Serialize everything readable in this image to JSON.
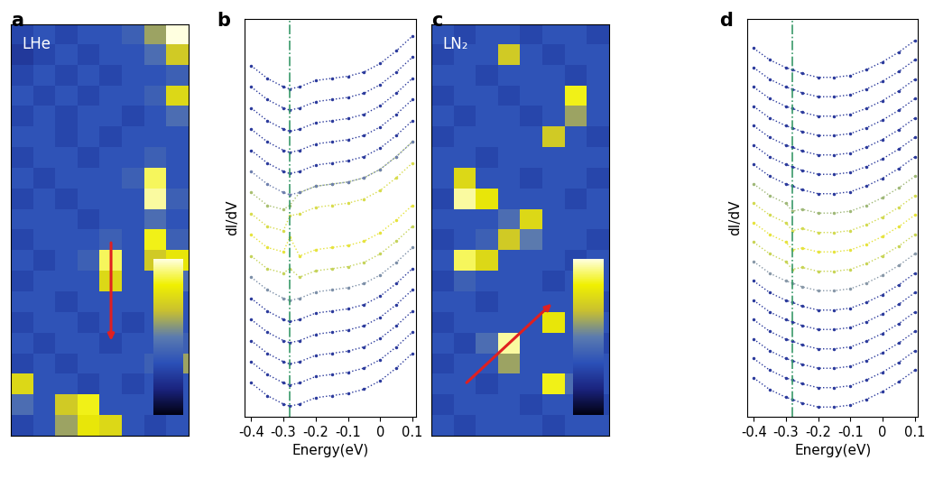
{
  "chart_data": [
    {
      "type": "heatmap",
      "label": "a",
      "annotation": "LHe",
      "tick_labels": false,
      "clim": [
        0,
        1
      ],
      "arrow": {
        "from": [
          4,
          10
        ],
        "to": [
          4,
          15
        ]
      },
      "cells": [
        [
          0.3,
          0.35,
          0.3,
          0.35,
          0.35,
          0.4,
          0.6,
          1.0
        ],
        [
          0.25,
          0.3,
          0.35,
          0.3,
          0.35,
          0.35,
          0.45,
          0.7
        ],
        [
          0.3,
          0.35,
          0.3,
          0.35,
          0.3,
          0.35,
          0.35,
          0.4
        ],
        [
          0.35,
          0.3,
          0.35,
          0.3,
          0.35,
          0.35,
          0.4,
          0.75
        ],
        [
          0.3,
          0.35,
          0.3,
          0.35,
          0.35,
          0.3,
          0.35,
          0.45
        ],
        [
          0.35,
          0.35,
          0.3,
          0.35,
          0.3,
          0.35,
          0.35,
          0.35
        ],
        [
          0.3,
          0.35,
          0.35,
          0.3,
          0.35,
          0.35,
          0.4,
          0.35
        ],
        [
          0.35,
          0.3,
          0.35,
          0.35,
          0.35,
          0.4,
          0.9,
          0.35
        ],
        [
          0.3,
          0.35,
          0.3,
          0.35,
          0.35,
          0.35,
          0.95,
          0.4
        ],
        [
          0.35,
          0.35,
          0.35,
          0.3,
          0.35,
          0.35,
          0.45,
          0.35
        ],
        [
          0.3,
          0.35,
          0.35,
          0.35,
          0.4,
          0.35,
          0.85,
          0.4
        ],
        [
          0.35,
          0.3,
          0.35,
          0.4,
          0.9,
          0.35,
          0.7,
          0.8
        ],
        [
          0.3,
          0.35,
          0.35,
          0.35,
          0.75,
          0.35,
          0.35,
          0.45
        ],
        [
          0.35,
          0.35,
          0.3,
          0.35,
          0.35,
          0.35,
          0.35,
          0.35
        ],
        [
          0.3,
          0.35,
          0.35,
          0.3,
          0.35,
          0.3,
          0.35,
          0.35
        ],
        [
          0.35,
          0.3,
          0.35,
          0.35,
          0.3,
          0.35,
          0.35,
          0.4
        ],
        [
          0.3,
          0.35,
          0.3,
          0.35,
          0.35,
          0.35,
          0.4,
          0.6
        ],
        [
          0.75,
          0.35,
          0.35,
          0.3,
          0.35,
          0.3,
          0.35,
          0.35
        ],
        [
          0.45,
          0.35,
          0.7,
          0.85,
          0.35,
          0.35,
          0.35,
          0.35
        ],
        [
          0.3,
          0.35,
          0.6,
          0.8,
          0.75,
          0.35,
          0.3,
          0.35
        ]
      ]
    },
    {
      "type": "line",
      "label": "b",
      "x_label": "Energy(eV)",
      "y_label": "dI/dV",
      "tick_labels": "x",
      "marker": ".",
      "line_style": "dotted",
      "xlim": [
        -0.42,
        0.11
      ],
      "xticks": [
        -0.4,
        -0.3,
        -0.2,
        -0.1,
        0,
        0.1
      ],
      "ylim": [
        1,
        19.8
      ],
      "yticks": [],
      "reference_line": {
        "x": -0.28,
        "color": "#3a9a6a",
        "line_style": "dashdot"
      },
      "x": [
        -0.4,
        -0.35,
        -0.3,
        -0.28,
        -0.25,
        -0.2,
        -0.15,
        -0.1,
        -0.05,
        0,
        0.05,
        0.1
      ],
      "series": [
        {
          "color": "#2b3a9c",
          "values": [
            2.6,
            2.0,
            1.6,
            1.5,
            1.6,
            1.9,
            2.0,
            2.1,
            2.3,
            2.7,
            3.3,
            4.0
          ]
        },
        {
          "color": "#2b3a9c",
          "values": [
            3.6,
            3.0,
            2.6,
            2.5,
            2.6,
            2.9,
            3.0,
            3.1,
            3.3,
            3.7,
            4.3,
            5.0
          ]
        },
        {
          "color": "#2b3a9c",
          "values": [
            4.6,
            4.0,
            3.6,
            3.5,
            3.6,
            3.9,
            4.0,
            4.1,
            4.3,
            4.7,
            5.3,
            6.0
          ]
        },
        {
          "color": "#2b3a9c",
          "values": [
            5.6,
            5.0,
            4.6,
            4.5,
            4.6,
            4.9,
            5.0,
            5.1,
            5.3,
            5.7,
            6.3,
            7.0
          ]
        },
        {
          "color": "#2b3a9c",
          "values": [
            6.6,
            6.0,
            5.6,
            5.5,
            5.6,
            5.9,
            6.0,
            6.1,
            6.3,
            6.7,
            7.3,
            8.0
          ]
        },
        {
          "color": "#7c8fa8",
          "values": [
            7.6,
            7.0,
            6.6,
            6.5,
            6.6,
            6.9,
            7.0,
            7.1,
            7.3,
            7.7,
            8.3,
            9.0
          ]
        },
        {
          "color": "#c5d35a",
          "values": [
            8.6,
            8.0,
            7.8,
            8.0,
            7.6,
            7.9,
            8.0,
            8.1,
            8.3,
            8.7,
            9.3,
            10.0
          ]
        },
        {
          "color": "#e6e33c",
          "values": [
            9.6,
            9.0,
            8.8,
            9.5,
            8.6,
            8.9,
            9.0,
            9.1,
            9.3,
            9.7,
            10.3,
            11.0
          ]
        },
        {
          "color": "#d8dc4c",
          "values": [
            10.6,
            10.0,
            9.8,
            10.5,
            10.6,
            10.9,
            11.0,
            11.1,
            11.3,
            11.7,
            12.3,
            13.0
          ]
        },
        {
          "color": "#a9c070",
          "values": [
            11.6,
            11.0,
            10.8,
            11.0,
            11.6,
            11.9,
            12.0,
            12.1,
            12.3,
            12.7,
            13.3,
            14.0
          ]
        },
        {
          "color": "#6e7fae",
          "values": [
            12.6,
            12.0,
            11.6,
            11.5,
            11.6,
            11.9,
            12.0,
            12.1,
            12.3,
            12.7,
            13.3,
            14.0
          ]
        },
        {
          "color": "#2b3a9c",
          "values": [
            13.6,
            13.0,
            12.6,
            12.5,
            12.6,
            12.9,
            13.0,
            13.1,
            13.3,
            13.7,
            14.3,
            15.0
          ]
        },
        {
          "color": "#2b3a9c",
          "values": [
            14.6,
            14.0,
            13.6,
            13.5,
            13.6,
            13.9,
            14.0,
            14.1,
            14.3,
            14.7,
            15.3,
            16.0
          ]
        },
        {
          "color": "#2b3a9c",
          "values": [
            15.6,
            15.0,
            14.6,
            14.5,
            14.6,
            14.9,
            15.0,
            15.1,
            15.3,
            15.7,
            16.3,
            17.0
          ]
        },
        {
          "color": "#2b3a9c",
          "values": [
            16.6,
            16.0,
            15.6,
            15.5,
            15.6,
            15.9,
            16.0,
            16.1,
            16.3,
            16.7,
            17.3,
            18.0
          ]
        },
        {
          "color": "#2b3a9c",
          "values": [
            17.6,
            17.0,
            16.6,
            16.5,
            16.6,
            16.9,
            17.0,
            17.1,
            17.3,
            17.7,
            18.3,
            19.0
          ]
        }
      ]
    },
    {
      "type": "heatmap",
      "label": "c",
      "annotation": "LN₂",
      "tick_labels": false,
      "clim": [
        0,
        1
      ],
      "arrow": {
        "from": [
          1,
          17
        ],
        "to": [
          5,
          13
        ]
      },
      "cells": [
        [
          0.35,
          0.3,
          0.35,
          0.35,
          0.3,
          0.35,
          0.35,
          0.3
        ],
        [
          0.3,
          0.35,
          0.35,
          0.7,
          0.35,
          0.3,
          0.35,
          0.35
        ],
        [
          0.35,
          0.35,
          0.3,
          0.35,
          0.35,
          0.35,
          0.3,
          0.35
        ],
        [
          0.3,
          0.35,
          0.35,
          0.3,
          0.35,
          0.35,
          0.85,
          0.35
        ],
        [
          0.35,
          0.3,
          0.35,
          0.35,
          0.3,
          0.35,
          0.6,
          0.35
        ],
        [
          0.3,
          0.35,
          0.35,
          0.35,
          0.35,
          0.7,
          0.35,
          0.3
        ],
        [
          0.35,
          0.35,
          0.3,
          0.35,
          0.35,
          0.35,
          0.35,
          0.35
        ],
        [
          0.35,
          0.75,
          0.35,
          0.35,
          0.3,
          0.35,
          0.35,
          0.3
        ],
        [
          0.3,
          0.95,
          0.8,
          0.35,
          0.35,
          0.35,
          0.3,
          0.35
        ],
        [
          0.35,
          0.35,
          0.35,
          0.45,
          0.75,
          0.35,
          0.35,
          0.35
        ],
        [
          0.3,
          0.35,
          0.4,
          0.7,
          0.5,
          0.35,
          0.35,
          0.3
        ],
        [
          0.35,
          0.9,
          0.75,
          0.35,
          0.35,
          0.35,
          0.3,
          0.35
        ],
        [
          0.3,
          0.4,
          0.35,
          0.35,
          0.35,
          0.3,
          0.35,
          0.35
        ],
        [
          0.35,
          0.35,
          0.3,
          0.35,
          0.35,
          0.35,
          0.35,
          0.3
        ],
        [
          0.3,
          0.35,
          0.35,
          0.35,
          0.35,
          0.8,
          0.35,
          0.35
        ],
        [
          0.35,
          0.3,
          0.45,
          0.95,
          0.35,
          0.35,
          0.35,
          0.3
        ],
        [
          0.3,
          0.35,
          0.35,
          0.6,
          0.35,
          0.35,
          0.35,
          0.35
        ],
        [
          0.35,
          0.35,
          0.3,
          0.35,
          0.35,
          0.85,
          0.45,
          0.35
        ],
        [
          0.3,
          0.35,
          0.35,
          0.35,
          0.3,
          0.35,
          0.35,
          0.3
        ],
        [
          0.35,
          0.3,
          0.35,
          0.35,
          0.35,
          0.3,
          0.35,
          0.35
        ]
      ]
    },
    {
      "type": "line",
      "label": "d",
      "x_label": "Energy(eV)",
      "y_label": "dI/dV",
      "tick_labels": "x",
      "marker": ".",
      "line_style": "dotted",
      "xlim": [
        -0.42,
        0.11
      ],
      "xticks": [
        -0.4,
        -0.3,
        -0.2,
        -0.1,
        0,
        0.1
      ],
      "ylim": [
        1,
        21.5
      ],
      "yticks": [],
      "reference_line": {
        "x": -0.28,
        "color": "#3a9a6a",
        "line_style": "dashdot"
      },
      "x": [
        -0.4,
        -0.35,
        -0.3,
        -0.28,
        -0.25,
        -0.2,
        -0.15,
        -0.1,
        -0.05,
        0,
        0.05,
        0.1
      ],
      "series": [
        {
          "color": "#2b3a9c",
          "values": [
            3.0,
            2.4,
            2.0,
            1.9,
            1.7,
            1.5,
            1.5,
            1.6,
            1.9,
            2.3,
            2.8,
            3.4
          ]
        },
        {
          "color": "#2b3a9c",
          "values": [
            4.0,
            3.4,
            3.0,
            2.9,
            2.7,
            2.5,
            2.5,
            2.6,
            2.9,
            3.3,
            3.8,
            4.4
          ]
        },
        {
          "color": "#2b3a9c",
          "values": [
            5.0,
            4.4,
            4.0,
            3.9,
            3.7,
            3.5,
            3.5,
            3.6,
            3.9,
            4.3,
            4.8,
            5.4
          ]
        },
        {
          "color": "#2b3a9c",
          "values": [
            6.0,
            5.4,
            5.0,
            4.9,
            4.7,
            4.5,
            4.5,
            4.6,
            4.9,
            5.3,
            5.8,
            6.4
          ]
        },
        {
          "color": "#2b3a9c",
          "values": [
            7.0,
            6.4,
            6.0,
            5.9,
            5.7,
            5.5,
            5.5,
            5.6,
            5.9,
            6.3,
            6.8,
            7.4
          ]
        },
        {
          "color": "#2b3a9c",
          "values": [
            8.0,
            7.4,
            7.0,
            6.9,
            6.7,
            6.5,
            6.5,
            6.6,
            6.9,
            7.3,
            7.8,
            8.4
          ]
        },
        {
          "color": "#8898a8",
          "values": [
            9.0,
            8.4,
            8.0,
            7.9,
            7.7,
            7.5,
            7.5,
            7.6,
            7.9,
            8.3,
            8.8,
            9.4
          ]
        },
        {
          "color": "#c8d455",
          "values": [
            10.0,
            9.4,
            9.0,
            8.6,
            8.7,
            8.5,
            8.5,
            8.6,
            8.9,
            9.3,
            9.8,
            10.4
          ]
        },
        {
          "color": "#e6e33c",
          "values": [
            11.0,
            10.4,
            10.0,
            9.6,
            9.7,
            9.5,
            9.5,
            9.6,
            9.9,
            10.3,
            10.8,
            11.4
          ]
        },
        {
          "color": "#d2da50",
          "values": [
            12.0,
            11.4,
            11.0,
            10.6,
            10.7,
            10.5,
            10.5,
            10.6,
            10.9,
            11.3,
            11.8,
            12.4
          ]
        },
        {
          "color": "#9fb878",
          "values": [
            13.0,
            12.4,
            12.0,
            11.6,
            11.7,
            11.5,
            11.5,
            11.6,
            11.9,
            12.3,
            12.8,
            13.4
          ]
        },
        {
          "color": "#2b3a9c",
          "values": [
            14.0,
            13.4,
            13.0,
            12.9,
            12.7,
            12.5,
            12.5,
            12.6,
            12.9,
            13.3,
            13.8,
            14.4
          ]
        },
        {
          "color": "#2b3a9c",
          "values": [
            15.0,
            14.4,
            14.0,
            13.9,
            13.7,
            13.5,
            13.5,
            13.6,
            13.9,
            14.3,
            14.8,
            15.4
          ]
        },
        {
          "color": "#2b3a9c",
          "values": [
            16.0,
            15.4,
            15.0,
            14.9,
            14.7,
            14.5,
            14.5,
            14.6,
            14.9,
            15.3,
            15.8,
            16.4
          ]
        },
        {
          "color": "#2b3a9c",
          "values": [
            17.0,
            16.4,
            16.0,
            15.9,
            15.7,
            15.5,
            15.5,
            15.6,
            15.9,
            16.3,
            16.8,
            17.4
          ]
        },
        {
          "color": "#2b3a9c",
          "values": [
            18.0,
            17.4,
            17.0,
            16.9,
            16.7,
            16.5,
            16.5,
            16.6,
            16.9,
            17.3,
            17.8,
            18.4
          ]
        },
        {
          "color": "#2b3a9c",
          "values": [
            19.0,
            18.4,
            18.0,
            17.9,
            17.7,
            17.5,
            17.5,
            17.6,
            17.9,
            18.3,
            18.8,
            19.4
          ]
        },
        {
          "color": "#2b3a9c",
          "values": [
            20.0,
            19.4,
            19.0,
            18.9,
            18.7,
            18.5,
            18.5,
            18.6,
            18.9,
            19.3,
            19.8,
            20.4
          ]
        }
      ]
    }
  ]
}
